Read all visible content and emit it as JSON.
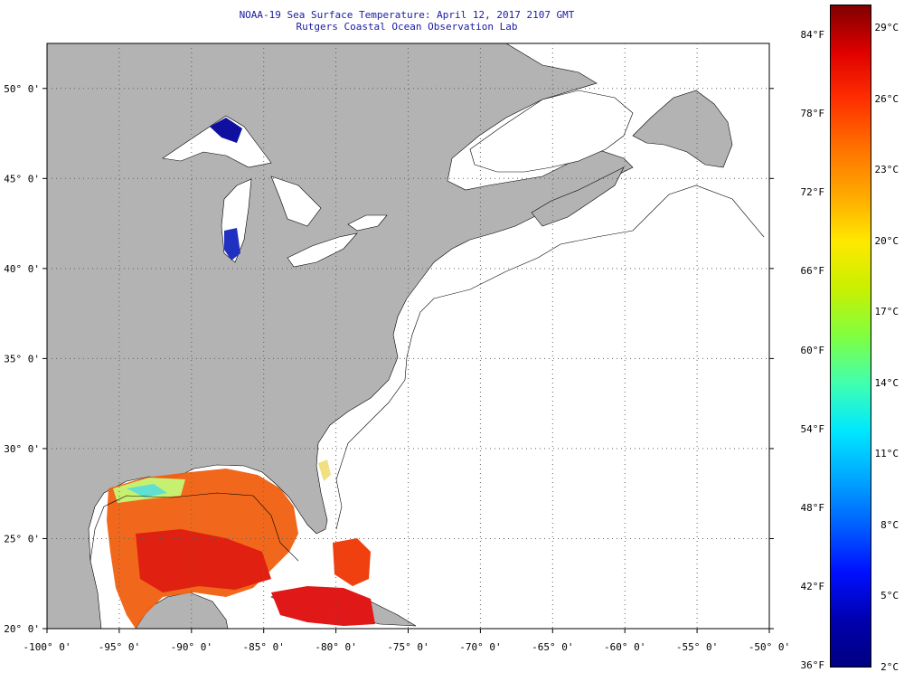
{
  "header": {
    "title_line1": "NOAA-19 Sea Surface Temperature:  April 12, 2017 2107 GMT",
    "title_line2": "Rutgers Coastal Ocean Observation Lab"
  },
  "map": {
    "lon_labels": [
      "-100° 0'",
      "-95° 0'",
      "-90° 0'",
      "-85° 0'",
      "-80° 0'",
      "-75° 0'",
      "-70° 0'",
      "-65° 0'",
      "-60° 0'",
      "-55° 0'",
      "-50° 0'"
    ],
    "lat_labels": [
      "20° 0'",
      "25° 0'",
      "30° 0'",
      "35° 0'",
      "40° 0'",
      "45° 0'",
      "50° 0'"
    ],
    "lon_range": [
      -100,
      -50
    ],
    "lat_range": [
      20,
      52.5
    ],
    "colors": {
      "land": "#b3b3b3",
      "ocean": "#ffffff",
      "grid": "#606060"
    }
  },
  "colorbar": {
    "fahrenheit_labels": [
      "84°F",
      "78°F",
      "72°F",
      "66°F",
      "60°F",
      "54°F",
      "48°F",
      "42°F",
      "36°F"
    ],
    "celsius_labels": [
      "29°C",
      "26°C",
      "23°C",
      "20°C",
      "17°C",
      "14°C",
      "11°C",
      "8°C",
      "5°C",
      "2°C"
    ],
    "colors_top_to_bottom": [
      "#800000",
      "#e00000",
      "#ff3000",
      "#ff7000",
      "#ffa800",
      "#ffe800",
      "#c8f000",
      "#80ff40",
      "#40ffb0",
      "#00e8ff",
      "#00a8ff",
      "#0060ff",
      "#0010ff",
      "#0000b0",
      "#000080"
    ]
  }
}
